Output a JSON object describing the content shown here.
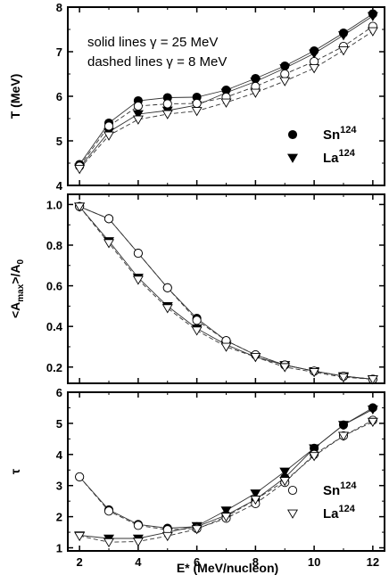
{
  "chart_data": [
    {
      "type": "line",
      "ylabel": "T (MeV)",
      "ylim": [
        4,
        8
      ],
      "yticks": [
        4,
        5,
        6,
        7,
        8
      ],
      "xlim": [
        1.6,
        12.4
      ],
      "xticks": [
        2,
        4,
        6,
        8,
        10,
        12
      ],
      "annotations": [
        "solid lines   γ = 25 MeV",
        "dashed lines γ =  8 MeV"
      ],
      "legend": [
        {
          "label": "Sn",
          "sup": "124",
          "marker": "filled-circle"
        },
        {
          "label": "La",
          "sup": "124",
          "marker": "filled-triangle-down"
        }
      ],
      "series": [
        {
          "name": "Sn124 γ=25",
          "marker": "filled-circle",
          "line": "solid",
          "x": [
            2,
            3,
            4,
            5,
            6,
            7,
            8,
            9,
            10,
            11,
            12
          ],
          "y": [
            4.47,
            5.4,
            5.9,
            5.97,
            5.98,
            6.14,
            6.4,
            6.68,
            7.02,
            7.42,
            7.85
          ]
        },
        {
          "name": "La124 γ=25",
          "marker": "filled-triangle-down",
          "line": "solid",
          "x": [
            2,
            3,
            4,
            5,
            6,
            7,
            8,
            9,
            10,
            11,
            12
          ],
          "y": [
            4.4,
            5.2,
            5.6,
            5.68,
            5.8,
            6.08,
            6.33,
            6.63,
            6.96,
            7.37,
            7.8
          ]
        },
        {
          "name": "Sn124 γ=8",
          "marker": "open-circle",
          "line": "dashed",
          "x": [
            2,
            3,
            4,
            5,
            6,
            7,
            8,
            9,
            10,
            11,
            12
          ],
          "y": [
            4.43,
            5.33,
            5.78,
            5.83,
            5.84,
            5.98,
            6.22,
            6.5,
            6.78,
            7.12,
            7.57
          ]
        },
        {
          "name": "La124 γ=8",
          "marker": "open-triangle-down",
          "line": "dashed",
          "x": [
            2,
            3,
            4,
            5,
            6,
            7,
            8,
            9,
            10,
            11,
            12
          ],
          "y": [
            4.37,
            5.12,
            5.48,
            5.6,
            5.67,
            5.86,
            6.08,
            6.34,
            6.63,
            7.03,
            7.46
          ]
        }
      ]
    },
    {
      "type": "line",
      "ylabel_main": "<A",
      "ylabel_sub1": "max",
      "ylabel_mid": ">/A",
      "ylabel_sub2": "0",
      "ylim": [
        0.12,
        1.05
      ],
      "yticks": [
        0.2,
        0.4,
        0.6,
        0.8,
        1.0
      ],
      "ytick_labels": [
        "0.2",
        "0.4",
        "0.6",
        "0.8",
        "1.0"
      ],
      "xlim": [
        1.6,
        12.4
      ],
      "xticks": [
        2,
        4,
        6,
        8,
        10,
        12
      ],
      "series": [
        {
          "name": "Sn124 γ=25",
          "marker": "filled-circle",
          "line": "solid",
          "x": [
            2,
            3,
            4,
            5,
            6,
            7,
            8,
            9,
            10,
            11,
            12
          ],
          "y": [
            0.99,
            0.93,
            0.76,
            0.59,
            0.44,
            0.33,
            0.26,
            0.21,
            0.18,
            0.155,
            0.14
          ]
        },
        {
          "name": "La124 γ=25",
          "marker": "filled-triangle-down",
          "line": "solid",
          "x": [
            2,
            3,
            4,
            5,
            6,
            7,
            8,
            9,
            10,
            11,
            12
          ],
          "y": [
            0.99,
            0.82,
            0.64,
            0.5,
            0.39,
            0.31,
            0.25,
            0.21,
            0.18,
            0.155,
            0.14
          ]
        },
        {
          "name": "Sn124 γ=8",
          "marker": "open-circle",
          "line": "dashed",
          "x": [
            2,
            3,
            4,
            5,
            6,
            7,
            8,
            9,
            10,
            11,
            12
          ],
          "y": [
            0.99,
            0.93,
            0.76,
            0.59,
            0.43,
            0.33,
            0.26,
            0.21,
            0.18,
            0.155,
            0.14
          ]
        },
        {
          "name": "La124 γ=8",
          "marker": "open-triangle-down",
          "line": "dashed",
          "x": [
            2,
            3,
            4,
            5,
            6,
            7,
            8,
            9,
            10,
            11,
            12
          ],
          "y": [
            0.99,
            0.81,
            0.63,
            0.49,
            0.38,
            0.3,
            0.25,
            0.2,
            0.175,
            0.15,
            0.14
          ]
        }
      ]
    },
    {
      "type": "line",
      "ylabel": "τ",
      "xlabel": "E* (MeV/nucleon)",
      "ylim": [
        0.9,
        6
      ],
      "yticks": [
        1,
        2,
        3,
        4,
        5,
        6
      ],
      "xlim": [
        1.6,
        12.4
      ],
      "xticks": [
        2,
        4,
        6,
        8,
        10,
        12
      ],
      "legend": [
        {
          "label": "Sn",
          "sup": "124",
          "marker": "open-circle"
        },
        {
          "label": "La",
          "sup": "124",
          "marker": "open-triangle-down"
        }
      ],
      "series": [
        {
          "name": "Sn124 γ=25",
          "marker": "filled-circle",
          "line": "solid",
          "x": [
            2,
            3,
            4,
            5,
            6,
            7,
            8,
            9,
            10,
            11,
            12
          ],
          "y": [
            3.28,
            2.22,
            1.75,
            1.63,
            1.68,
            2.05,
            2.55,
            3.25,
            4.2,
            4.95,
            5.5
          ]
        },
        {
          "name": "La124 γ=25",
          "marker": "filled-triangle-down",
          "line": "solid",
          "x": [
            2,
            3,
            4,
            5,
            6,
            7,
            8,
            9,
            10,
            11,
            12
          ],
          "y": [
            1.4,
            1.3,
            1.3,
            1.5,
            1.7,
            2.2,
            2.75,
            3.45,
            4.2,
            4.95,
            5.45
          ]
        },
        {
          "name": "Sn124 γ=8",
          "marker": "open-circle",
          "line": "dashed",
          "x": [
            2,
            3,
            4,
            5,
            6,
            7,
            8,
            9,
            10,
            11,
            12
          ],
          "y": [
            3.28,
            2.18,
            1.72,
            1.58,
            1.62,
            1.95,
            2.42,
            3.1,
            4.0,
            4.6,
            5.1
          ]
        },
        {
          "name": "La124 γ=8",
          "marker": "open-triangle-down",
          "line": "dashed",
          "x": [
            2,
            3,
            4,
            5,
            6,
            7,
            8,
            9,
            10,
            11,
            12
          ],
          "y": [
            1.38,
            1.18,
            1.2,
            1.38,
            1.6,
            2.0,
            2.55,
            3.15,
            3.95,
            4.6,
            5.05
          ]
        }
      ]
    }
  ]
}
